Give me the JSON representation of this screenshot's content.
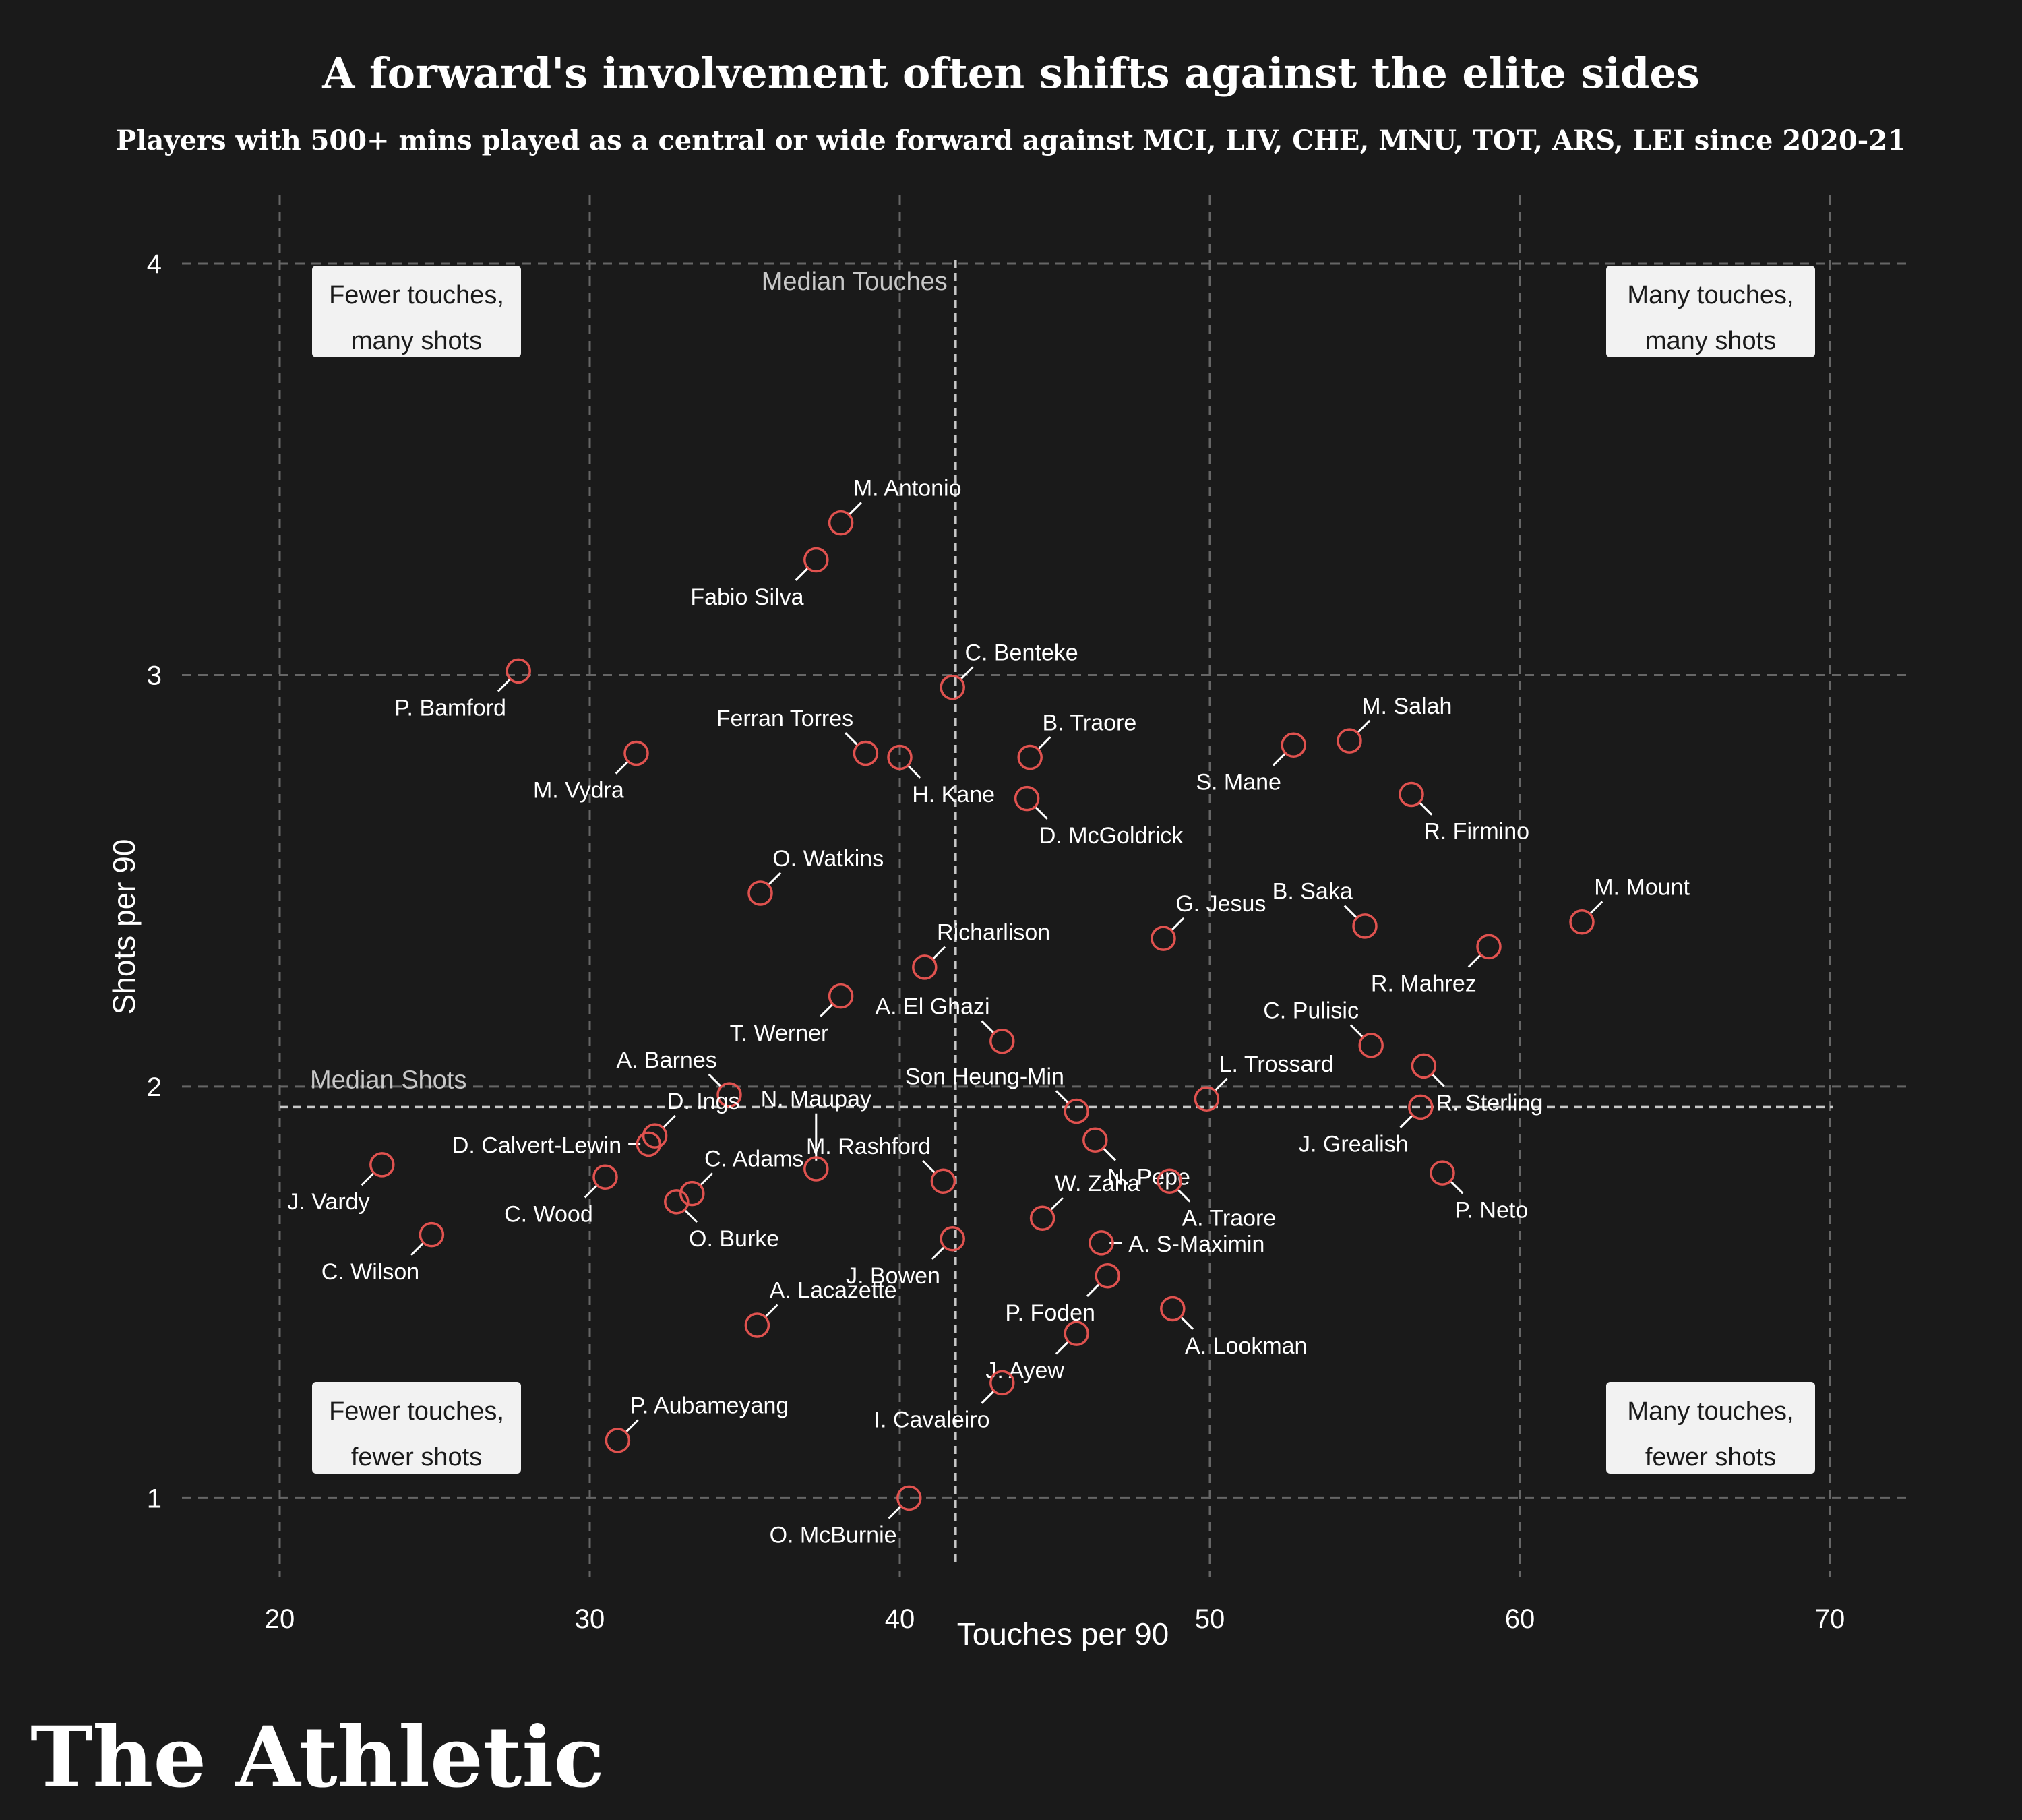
{
  "title": "A forward's involvement often shifts against the elite sides",
  "subtitle": "Players with 500+ mins played as a central or wide forward against MCI, LIV, CHE, MNU, TOT, ARS, LEI since 2020-21",
  "brand": "The Athletic",
  "colors": {
    "background": "#1a1a1a",
    "marker": "#e0524f",
    "text": "#ffffff",
    "muted": "#c8c8c8",
    "grid": "#666666",
    "box_fill": "#f2f2f2",
    "box_text": "#1a1a1a"
  },
  "chart_data": {
    "type": "scatter",
    "xlabel": "Touches per 90",
    "ylabel": "Shots per 90",
    "xlim": [
      17.5,
      72.5
    ],
    "ylim": [
      0.84,
      4.1
    ],
    "xticks": [
      20,
      30,
      40,
      50,
      60,
      70
    ],
    "yticks": [
      1,
      2,
      3,
      4
    ],
    "grid": true,
    "median_touches": 41.8,
    "median_shots": 1.95,
    "median_touches_label": "Median Touches",
    "median_shots_label": "Median Shots",
    "quadrant_labels": {
      "top_left": [
        "Fewer touches,",
        "many shots"
      ],
      "top_right": [
        "Many touches,",
        "many shots"
      ],
      "bottom_left": [
        "Fewer touches,",
        "fewer shots"
      ],
      "bottom_right": [
        "Many touches,",
        "fewer shots"
      ]
    },
    "points": [
      {
        "name": "M. Antonio",
        "x": 38.1,
        "y": 3.37,
        "label": "top-right"
      },
      {
        "name": "Fabio Silva",
        "x": 37.3,
        "y": 3.28,
        "label": "bottom-left"
      },
      {
        "name": "P. Bamford",
        "x": 27.7,
        "y": 3.01,
        "label": "bottom-left"
      },
      {
        "name": "C. Benteke",
        "x": 41.7,
        "y": 2.97,
        "label": "top-right"
      },
      {
        "name": "Ferran Torres",
        "x": 38.9,
        "y": 2.81,
        "label": "top-left"
      },
      {
        "name": "H. Kane",
        "x": 40.0,
        "y": 2.8,
        "label": "bottom-right"
      },
      {
        "name": "B. Traore",
        "x": 44.2,
        "y": 2.8,
        "label": "top-right"
      },
      {
        "name": "M. Vydra",
        "x": 31.5,
        "y": 2.81,
        "label": "bottom-left"
      },
      {
        "name": "S. Mane",
        "x": 52.7,
        "y": 2.83,
        "label": "bottom-left"
      },
      {
        "name": "M. Salah",
        "x": 54.5,
        "y": 2.84,
        "label": "top-right"
      },
      {
        "name": "R. Firmino",
        "x": 56.5,
        "y": 2.71,
        "label": "bottom-right"
      },
      {
        "name": "D. McGoldrick",
        "x": 44.1,
        "y": 2.7,
        "label": "bottom-right"
      },
      {
        "name": "O. Watkins",
        "x": 35.5,
        "y": 2.47,
        "label": "top-right"
      },
      {
        "name": "G. Jesus",
        "x": 48.5,
        "y": 2.36,
        "label": "top-right"
      },
      {
        "name": "B. Saka",
        "x": 55.0,
        "y": 2.39,
        "label": "top-left"
      },
      {
        "name": "M. Mount",
        "x": 62.0,
        "y": 2.4,
        "label": "top-right"
      },
      {
        "name": "R. Mahrez",
        "x": 59.0,
        "y": 2.34,
        "label": "bottom-left"
      },
      {
        "name": "Richarlison",
        "x": 40.8,
        "y": 2.29,
        "label": "top-right"
      },
      {
        "name": "T. Werner",
        "x": 38.1,
        "y": 2.22,
        "label": "bottom-left"
      },
      {
        "name": "A. El Ghazi",
        "x": 43.3,
        "y": 2.11,
        "label": "top-left"
      },
      {
        "name": "C. Pulisic",
        "x": 55.2,
        "y": 2.1,
        "label": "top-left"
      },
      {
        "name": "R. Sterling",
        "x": 56.9,
        "y": 2.05,
        "label": "bottom-right"
      },
      {
        "name": "L. Trossard",
        "x": 49.9,
        "y": 1.97,
        "label": "top-right"
      },
      {
        "name": "J. Grealish",
        "x": 56.8,
        "y": 1.95,
        "label": "bottom-left"
      },
      {
        "name": "A. Barnes",
        "x": 34.5,
        "y": 1.98,
        "label": "top-left"
      },
      {
        "name": "Son Heung-Min",
        "x": 45.7,
        "y": 1.94,
        "label": "top-left"
      },
      {
        "name": "N. Pepe",
        "x": 46.3,
        "y": 1.87,
        "label": "bottom-right"
      },
      {
        "name": "D. Ings",
        "x": 32.1,
        "y": 1.88,
        "label": "top-right"
      },
      {
        "name": "D. Calvert-Lewin",
        "x": 31.9,
        "y": 1.86,
        "label": "left"
      },
      {
        "name": "N. Maupay",
        "x": 37.3,
        "y": 1.8,
        "label": "top"
      },
      {
        "name": "J. Vardy",
        "x": 23.3,
        "y": 1.81,
        "label": "bottom-left"
      },
      {
        "name": "C. Wood",
        "x": 30.5,
        "y": 1.78,
        "label": "bottom-left"
      },
      {
        "name": "C. Adams",
        "x": 33.3,
        "y": 1.74,
        "label": "top-right"
      },
      {
        "name": "O. Burke",
        "x": 32.8,
        "y": 1.72,
        "label": "bottom-right"
      },
      {
        "name": "M. Rashford",
        "x": 41.4,
        "y": 1.77,
        "label": "top-left"
      },
      {
        "name": "A. Traore",
        "x": 48.7,
        "y": 1.77,
        "label": "bottom-right"
      },
      {
        "name": "P. Neto",
        "x": 57.5,
        "y": 1.79,
        "label": "bottom-right"
      },
      {
        "name": "W. Zaha",
        "x": 44.6,
        "y": 1.68,
        "label": "top-right"
      },
      {
        "name": "C. Wilson",
        "x": 24.9,
        "y": 1.64,
        "label": "bottom-left"
      },
      {
        "name": "J. Bowen",
        "x": 41.7,
        "y": 1.63,
        "label": "bottom-left"
      },
      {
        "name": "A. S-Maximin",
        "x": 46.5,
        "y": 1.62,
        "label": "right"
      },
      {
        "name": "A. Lacazette",
        "x": 35.4,
        "y": 1.42,
        "label": "top-right"
      },
      {
        "name": "P. Foden",
        "x": 46.7,
        "y": 1.54,
        "label": "bottom-left"
      },
      {
        "name": "A. Lookman",
        "x": 48.8,
        "y": 1.46,
        "label": "bottom-right"
      },
      {
        "name": "J. Ayew",
        "x": 45.7,
        "y": 1.4,
        "label": "bottom-left"
      },
      {
        "name": "I. Cavaleiro",
        "x": 43.3,
        "y": 1.28,
        "label": "bottom-left"
      },
      {
        "name": "P. Aubameyang",
        "x": 30.9,
        "y": 1.14,
        "label": "top-right"
      },
      {
        "name": "O. McBurnie",
        "x": 40.3,
        "y": 1.0,
        "label": "bottom-left"
      }
    ]
  }
}
